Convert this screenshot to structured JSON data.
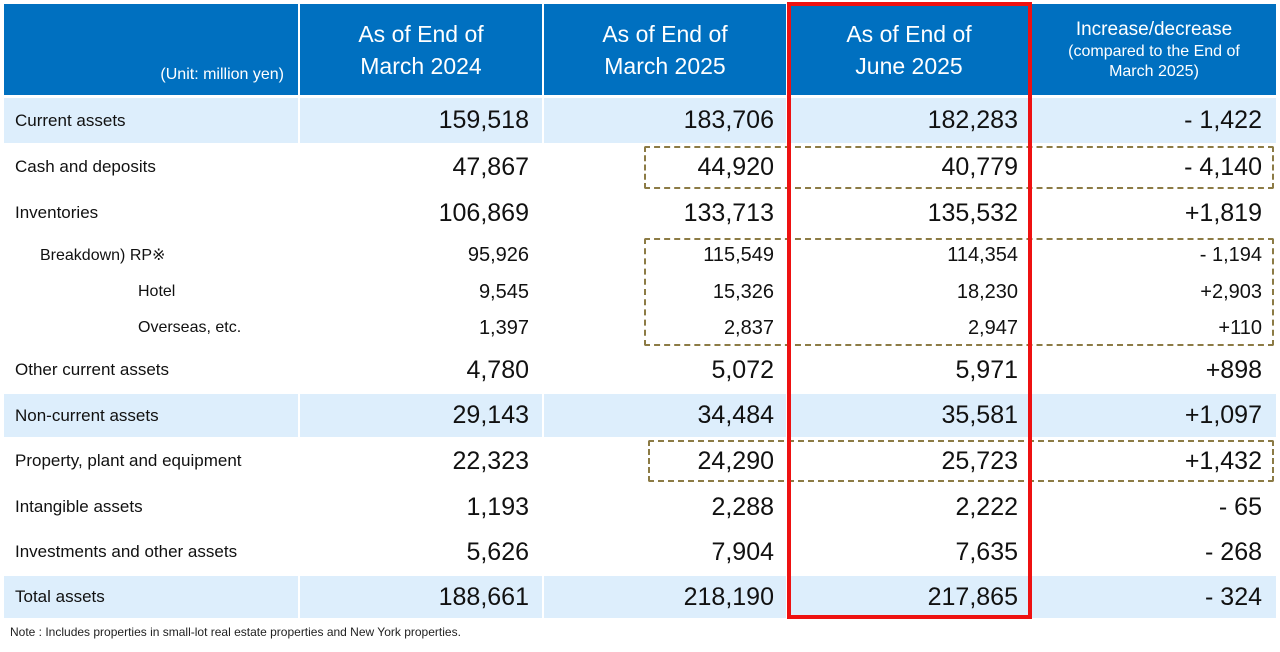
{
  "header": {
    "unit": "(Unit: million yen)",
    "col1": [
      "As of End of",
      "March 2024"
    ],
    "col2": [
      "As of End of",
      "March 2025"
    ],
    "col3": [
      "As of End of",
      "June 2025"
    ],
    "col4_title": "Increase/decrease",
    "col4_sub": [
      "(compared to the End of",
      "March 2025)"
    ]
  },
  "rows": [
    {
      "label": "Current assets",
      "values": [
        "159,518",
        "183,706",
        "182,283",
        "- 1,422"
      ]
    },
    {
      "label": "Cash and deposits",
      "values": [
        "47,867",
        "44,920",
        "40,779",
        "- 4,140"
      ]
    },
    {
      "label": "Inventories",
      "values": [
        "106,869",
        "133,713",
        "135,532",
        "+1,819"
      ]
    },
    {
      "label": "Breakdown) RP※",
      "values": [
        "95,926",
        "115,549",
        "114,354",
        "- 1,194"
      ]
    },
    {
      "label": "Hotel",
      "values": [
        "9,545",
        "15,326",
        "18,230",
        "+2,903"
      ]
    },
    {
      "label": "Overseas, etc.",
      "values": [
        "1,397",
        "2,837",
        "2,947",
        "+110"
      ]
    },
    {
      "label": "Other current assets",
      "values": [
        "4,780",
        "5,072",
        "5,971",
        "+898"
      ]
    },
    {
      "label": "Non-current assets",
      "values": [
        "29,143",
        "34,484",
        "35,581",
        "+1,097"
      ]
    },
    {
      "label": "Property, plant and equipment",
      "values": [
        "22,323",
        "24,290",
        "25,723",
        "+1,432"
      ]
    },
    {
      "label": "Intangible assets",
      "values": [
        "1,193",
        "2,288",
        "2,222",
        "- 65"
      ]
    },
    {
      "label": "Investments and other assets",
      "values": [
        "5,626",
        "7,904",
        "7,635",
        "- 268"
      ]
    },
    {
      "label": "Total assets",
      "values": [
        "188,661",
        "218,190",
        "217,865",
        "- 324"
      ]
    }
  ],
  "note": "Note : Includes properties in small-lot real estate properties and New York properties.",
  "colors": {
    "header_bg": "#0070C0",
    "shaded_row": "#DDEEFC",
    "highlight_border": "#EE1111",
    "dashed_border": "#8C7B45"
  }
}
